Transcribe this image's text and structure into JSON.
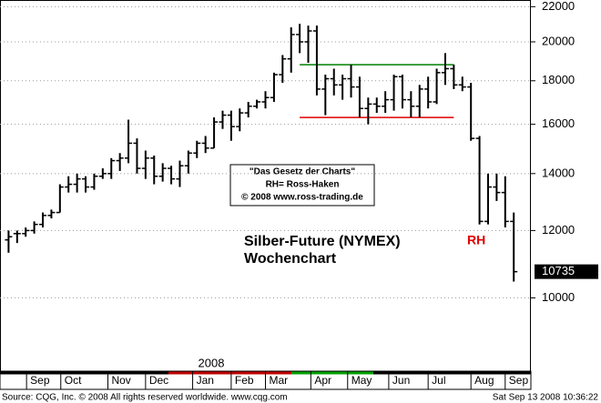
{
  "chart_data": {
    "type": "ohlc",
    "title": "Silber-Future (NYMEX)",
    "subtitle": "Wochenchart",
    "note_lines": [
      "\"Das Gesetz der Charts\"",
      "RH= Ross-Haken",
      "© 2008 www.ross-trading.de"
    ],
    "marker_label": "RH",
    "year_label": "2008",
    "last_price": 10735,
    "footer_left": "Source: CQG, Inc. © 2008 All rights reserved worldwide. www.cqg.com",
    "footer_right": "Sat Sep 13 2008 10:36:22",
    "log_scale": true,
    "grid": true,
    "color": "#000000",
    "ylim": [
      8200,
      22400
    ],
    "yticks": [
      10000,
      12000,
      14000,
      16000,
      18000,
      20000,
      22000
    ],
    "xlim": [
      -1,
      61
    ],
    "xticks": [
      {
        "value": 2.1,
        "label": "Sep"
      },
      {
        "value": 6.1,
        "label": "Oct"
      },
      {
        "value": 11.6,
        "label": "Nov"
      },
      {
        "value": 16,
        "label": "Dec"
      },
      {
        "value": 21.5,
        "label": "Jan"
      },
      {
        "value": 26,
        "label": "Feb"
      },
      {
        "value": 30,
        "label": "Mar"
      },
      {
        "value": 35.3,
        "label": "Apr"
      },
      {
        "value": 39.6,
        "label": "May"
      },
      {
        "value": 44.4,
        "label": "Jun"
      },
      {
        "value": 49,
        "label": "Jul"
      },
      {
        "value": 54,
        "label": "Aug"
      },
      {
        "value": 58,
        "label": "Sep"
      }
    ],
    "levels": [
      {
        "value": 18800,
        "from": 34,
        "to": 52,
        "color": "#008000"
      },
      {
        "value": 16300,
        "from": 34,
        "to": 52,
        "color": "#e00000"
      }
    ],
    "open": [
      11700,
      11900,
      11900,
      12000,
      12200,
      12500,
      12600,
      13500,
      13600,
      13800,
      13500,
      13900,
      14000,
      14500,
      14600,
      15200,
      14200,
      14600,
      13900,
      14200,
      13800,
      14300,
      14800,
      15200,
      15000,
      16100,
      16400,
      15900,
      16500,
      16800,
      17000,
      17200,
      18300,
      19100,
      20400,
      20000,
      20600,
      17600,
      18100,
      17800,
      18100,
      17700,
      16700,
      16900,
      16800,
      17100,
      18200,
      17100,
      16800,
      17600,
      17000,
      18400,
      18600,
      17800,
      17700,
      15400,
      12300,
      13500,
      13300,
      12300
    ],
    "high": [
      12000,
      12000,
      12100,
      12300,
      12600,
      12700,
      13600,
      13900,
      14000,
      13900,
      14000,
      14200,
      14600,
      14800,
      16200,
      15400,
      14900,
      14700,
      14400,
      14300,
      14500,
      14900,
      15300,
      15500,
      16300,
      16600,
      16600,
      16700,
      17000,
      17100,
      17500,
      18400,
      19300,
      20800,
      21000,
      20900,
      20900,
      18300,
      18600,
      18300,
      18800,
      18200,
      17200,
      17200,
      17500,
      18300,
      18300,
      17500,
      17800,
      18200,
      18600,
      19400,
      18800,
      18200,
      17900,
      15500,
      14000,
      14000,
      13900,
      12600
    ],
    "low": [
      11300,
      11600,
      11800,
      11900,
      12100,
      12400,
      12600,
      13300,
      13300,
      13300,
      13400,
      13800,
      13800,
      14100,
      14400,
      14000,
      13800,
      13600,
      13700,
      13600,
      13500,
      14000,
      14600,
      14800,
      15000,
      15800,
      15300,
      15700,
      16300,
      16700,
      16700,
      17000,
      17900,
      18400,
      19400,
      18900,
      17300,
      16400,
      17300,
      17100,
      17200,
      16300,
      16000,
      16500,
      16500,
      16600,
      16700,
      16300,
      16300,
      16700,
      16900,
      17800,
      17600,
      17500,
      15300,
      12200,
      12200,
      13000,
      12100,
      10450
    ],
    "close": [
      11800,
      11900,
      12000,
      12200,
      12500,
      12600,
      13500,
      13600,
      13800,
      13500,
      13900,
      14000,
      14500,
      14600,
      15200,
      14200,
      14600,
      13900,
      14200,
      13800,
      14300,
      14800,
      15200,
      15000,
      16100,
      16400,
      15900,
      16500,
      16800,
      17000,
      17200,
      18300,
      19100,
      20400,
      20000,
      20600,
      17600,
      18100,
      17800,
      18100,
      17700,
      16700,
      16900,
      16800,
      17100,
      18200,
      17100,
      16800,
      17600,
      17000,
      18400,
      18600,
      17800,
      17700,
      15400,
      12300,
      13500,
      13300,
      12300,
      10735
    ]
  }
}
